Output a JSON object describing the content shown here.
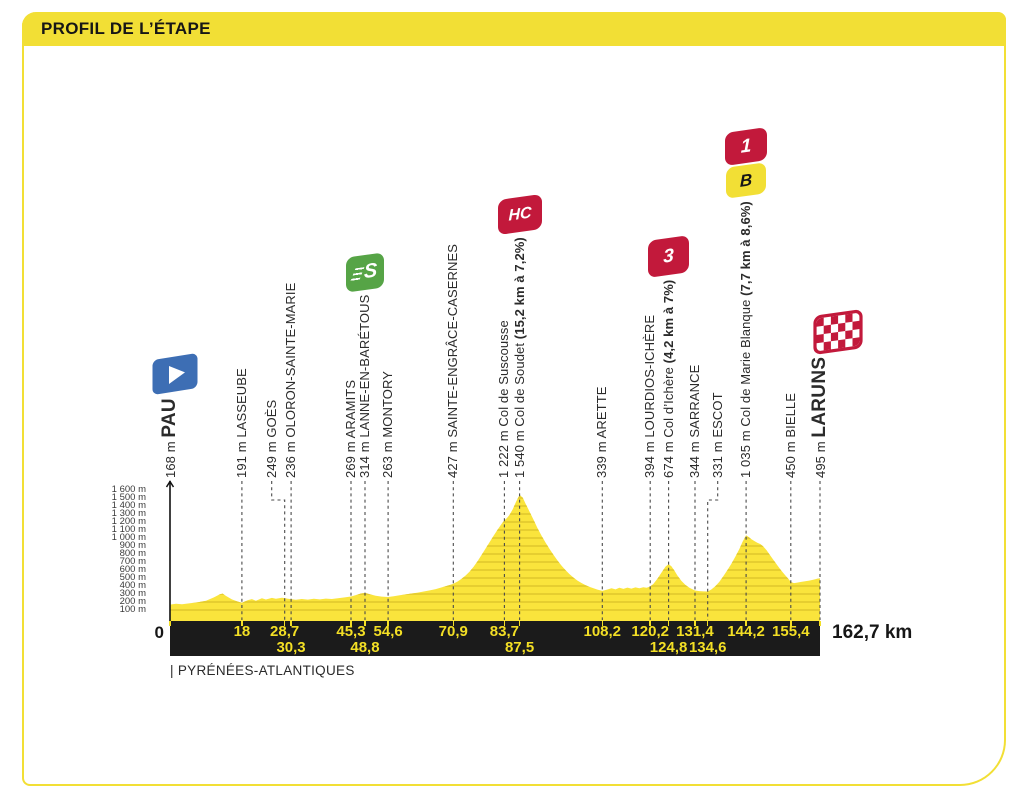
{
  "header": {
    "title": "PROFIL DE L’ÉTAPE"
  },
  "footer": {
    "department": "| PYRÉNÉES-ATLANTIQUES"
  },
  "axis": {
    "start_label": "0",
    "total_label": "162,7 km",
    "y_ticks": [
      {
        "m": 1600,
        "label": "1 600 m"
      },
      {
        "m": 1500,
        "label": "1 500 m"
      },
      {
        "m": 1400,
        "label": "1 400 m"
      },
      {
        "m": 1300,
        "label": "1 300 m"
      },
      {
        "m": 1200,
        "label": "1 200 m"
      },
      {
        "m": 1100,
        "label": "1 100 m"
      },
      {
        "m": 1000,
        "label": "1 000 m"
      },
      {
        "m": 900,
        "label": "900 m"
      },
      {
        "m": 800,
        "label": "800 m"
      },
      {
        "m": 700,
        "label": "700 m"
      },
      {
        "m": 600,
        "label": "600 m"
      },
      {
        "m": 500,
        "label": "500 m"
      },
      {
        "m": 400,
        "label": "400 m"
      },
      {
        "m": 300,
        "label": "300 m"
      },
      {
        "m": 200,
        "label": "200 m"
      },
      {
        "m": 100,
        "label": "100 m"
      }
    ]
  },
  "colors": {
    "brand_yellow": "#F2DF35",
    "profile_yellow": "#FAE43C",
    "stripe": "#DFC62C",
    "category_red": "#C2193B",
    "sprint_green": "#56A446",
    "start_blue": "#3D6EB4",
    "bar_black": "#1B1B1B",
    "km_text_yellow": "#F3DF25",
    "leader_gray": "#4A4A4A"
  },
  "chart_data": {
    "type": "area",
    "title": "PROFIL DE L’ÉTAPE",
    "x_unit": "km",
    "y_unit": "m",
    "xlim": [
      0,
      162.7
    ],
    "ylim": [
      0,
      1600
    ],
    "grid": "horizontal stripes inside area only",
    "legend_position": "none",
    "route": {
      "start": "PAU",
      "finish": "LARUNS",
      "total_km": 162.7,
      "department": "PYRÉNÉES-ATLANTIQUES"
    },
    "badge_defs": {
      "hc": {
        "label": "HC",
        "meaning": "hors catégorie climb"
      },
      "cat1": {
        "label": "1",
        "meaning": "category 1 climb"
      },
      "cat3": {
        "label": "3",
        "meaning": "category 3 climb"
      },
      "bonus": {
        "label": "B",
        "meaning": "bonus point"
      },
      "sprint": {
        "label": "S",
        "meaning": "intermediate sprint"
      },
      "start": {
        "label": "",
        "meaning": "start flag"
      },
      "finish": {
        "label": "",
        "meaning": "finish flag"
      }
    },
    "waypoints": [
      {
        "km": 0,
        "elevation_m": 168,
        "elev_label": "168 m",
        "name": "PAU",
        "style": "start",
        "dist_row": 0,
        "badges": [
          "start"
        ],
        "badge_dx": 5
      },
      {
        "km": 18,
        "elevation_m": 191,
        "elev_label": "191 m",
        "name": "LASSEUBE",
        "style": "city",
        "dist_label": "18",
        "dist_row": 1
      },
      {
        "km": 28.7,
        "elevation_m": 249,
        "elev_label": "249 m",
        "name": "GOÈS",
        "style": "city",
        "dist_label": "28,7",
        "dist_row": 1,
        "label_dx": -13
      },
      {
        "km": 30.3,
        "elevation_m": 236,
        "elev_label": "236 m",
        "name": "OLORON-SAINTE-MARIE",
        "style": "city",
        "dist_label": "30,3",
        "dist_row": 2
      },
      {
        "km": 45.3,
        "elevation_m": 269,
        "elev_label": "269 m",
        "name": "ARAMITS",
        "style": "city",
        "dist_label": "45,3",
        "dist_row": 1
      },
      {
        "km": 48.8,
        "elevation_m": 314,
        "elev_label": "314 m",
        "name": "LANNE-EN-BARÉTOUS",
        "style": "city",
        "dist_label": "48,8",
        "dist_row": 2,
        "badges": [
          "sprint"
        ]
      },
      {
        "km": 54.6,
        "elevation_m": 263,
        "elev_label": "263 m",
        "name": "MONTORY",
        "style": "city",
        "dist_label": "54,6",
        "dist_row": 1
      },
      {
        "km": 70.9,
        "elevation_m": 427,
        "elev_label": "427 m",
        "name": "SAINTE-ENGRÂCE-CASERNES",
        "style": "city",
        "dist_label": "70,9",
        "dist_row": 1
      },
      {
        "km": 83.7,
        "elevation_m": 1222,
        "elev_label": "1 222 m",
        "name": "Col de Suscousse",
        "style": "climb",
        "dist_label": "83,7",
        "dist_row": 1
      },
      {
        "km": 87.5,
        "elevation_m": 1540,
        "elev_label": "1 540 m",
        "name": "Col de Soudet",
        "style": "climb",
        "detail": "(15,2 km à 7,2%)",
        "dist_label": "87,5",
        "dist_row": 2,
        "badges": [
          "hc"
        ]
      },
      {
        "km": 108.2,
        "elevation_m": 339,
        "elev_label": "339 m",
        "name": "ARETTE",
        "style": "city",
        "dist_label": "108,2",
        "dist_row": 1
      },
      {
        "km": 120.2,
        "elevation_m": 394,
        "elev_label": "394 m",
        "name": "LOURDIOS-ICHÈRE",
        "style": "city",
        "dist_label": "120,2",
        "dist_row": 1
      },
      {
        "km": 124.8,
        "elevation_m": 674,
        "elev_label": "674 m",
        "name": "Col d’Ichère",
        "style": "climb",
        "detail": "(4,2 km à 7%)",
        "dist_label": "124,8",
        "dist_row": 2,
        "badges": [
          "cat3"
        ]
      },
      {
        "km": 131.4,
        "elevation_m": 344,
        "elev_label": "344 m",
        "name": "SARRANCE",
        "style": "city",
        "dist_label": "131,4",
        "dist_row": 1
      },
      {
        "km": 134.6,
        "elevation_m": 331,
        "elev_label": "331 m",
        "name": "ESCOT",
        "style": "city",
        "dist_label": "134,6",
        "dist_row": 2,
        "label_dx": 10
      },
      {
        "km": 144.2,
        "elevation_m": 1035,
        "elev_label": "1 035 m",
        "name": "Col de Marie Blanque",
        "style": "climb",
        "detail": "(7,7 km à 8,6%)",
        "dist_label": "144,2",
        "dist_row": 1,
        "badges": [
          "cat1",
          "bonus"
        ]
      },
      {
        "km": 155.4,
        "elevation_m": 450,
        "elev_label": "450 m",
        "name": "BIELLE",
        "style": "city",
        "dist_label": "155,4",
        "dist_row": 1
      },
      {
        "km": 162.7,
        "elevation_m": 495,
        "elev_label": "495 m",
        "name": "LARUNS",
        "style": "finish",
        "dist_row": 0,
        "badges": [
          "finish"
        ],
        "badge_dx": 18
      }
    ],
    "profile": [
      [
        0,
        168
      ],
      [
        1.5,
        178
      ],
      [
        3,
        172
      ],
      [
        5,
        185
      ],
      [
        7,
        196
      ],
      [
        9,
        215
      ],
      [
        11,
        258
      ],
      [
        12.5,
        298
      ],
      [
        13.2,
        305
      ],
      [
        14,
        276
      ],
      [
        15.5,
        232
      ],
      [
        17,
        205
      ],
      [
        18,
        191
      ],
      [
        19.5,
        224
      ],
      [
        20.5,
        236
      ],
      [
        21.5,
        216
      ],
      [
        23,
        246
      ],
      [
        24,
        231
      ],
      [
        25.5,
        251
      ],
      [
        26.5,
        241
      ],
      [
        28,
        252
      ],
      [
        28.7,
        249
      ],
      [
        29.5,
        241
      ],
      [
        30.3,
        236
      ],
      [
        31.5,
        228
      ],
      [
        33,
        238
      ],
      [
        34.5,
        230
      ],
      [
        36,
        240
      ],
      [
        37.5,
        233
      ],
      [
        39,
        242
      ],
      [
        40.5,
        238
      ],
      [
        42,
        248
      ],
      [
        43.5,
        256
      ],
      [
        45.3,
        269
      ],
      [
        46.5,
        286
      ],
      [
        47.8,
        306
      ],
      [
        48.8,
        314
      ],
      [
        50,
        296
      ],
      [
        51.5,
        278
      ],
      [
        53,
        268
      ],
      [
        54.6,
        263
      ],
      [
        56,
        272
      ],
      [
        57.5,
        284
      ],
      [
        59,
        295
      ],
      [
        60.5,
        306
      ],
      [
        62,
        318
      ],
      [
        63.5,
        331
      ],
      [
        65,
        345
      ],
      [
        66.5,
        361
      ],
      [
        68,
        382
      ],
      [
        69.5,
        405
      ],
      [
        70.9,
        427
      ],
      [
        72,
        456
      ],
      [
        73,
        490
      ],
      [
        74,
        531
      ],
      [
        75,
        580
      ],
      [
        76,
        641
      ],
      [
        77,
        711
      ],
      [
        78,
        789
      ],
      [
        79,
        869
      ],
      [
        80,
        949
      ],
      [
        81,
        1029
      ],
      [
        82,
        1105
      ],
      [
        83,
        1176
      ],
      [
        83.7,
        1222
      ],
      [
        84.3,
        1246
      ],
      [
        85,
        1291
      ],
      [
        85.8,
        1361
      ],
      [
        86.6,
        1451
      ],
      [
        87.5,
        1540
      ],
      [
        88.3,
        1504
      ],
      [
        89,
        1429
      ],
      [
        90,
        1329
      ],
      [
        91,
        1226
      ],
      [
        92,
        1124
      ],
      [
        93,
        1030
      ],
      [
        94,
        944
      ],
      [
        95,
        864
      ],
      [
        96,
        789
      ],
      [
        97,
        719
      ],
      [
        98,
        655
      ],
      [
        99,
        599
      ],
      [
        100,
        549
      ],
      [
        101,
        505
      ],
      [
        102,
        468
      ],
      [
        103,
        437
      ],
      [
        104,
        411
      ],
      [
        105,
        389
      ],
      [
        106,
        371
      ],
      [
        107,
        355
      ],
      [
        108.2,
        339
      ],
      [
        109.5,
        356
      ],
      [
        110.5,
        372
      ],
      [
        111.5,
        358
      ],
      [
        112.5,
        377
      ],
      [
        113.5,
        364
      ],
      [
        114.5,
        380
      ],
      [
        115.5,
        368
      ],
      [
        116.5,
        382
      ],
      [
        117.5,
        371
      ],
      [
        118.5,
        384
      ],
      [
        119.3,
        377
      ],
      [
        120.2,
        394
      ],
      [
        121,
        426
      ],
      [
        122,
        491
      ],
      [
        123,
        566
      ],
      [
        124,
        641
      ],
      [
        124.8,
        674
      ],
      [
        125.5,
        646
      ],
      [
        126.3,
        589
      ],
      [
        127,
        531
      ],
      [
        128,
        464
      ],
      [
        129,
        414
      ],
      [
        130,
        379
      ],
      [
        131.4,
        344
      ],
      [
        132.5,
        336
      ],
      [
        133.5,
        332
      ],
      [
        134.6,
        331
      ],
      [
        135.5,
        356
      ],
      [
        136.5,
        396
      ],
      [
        137.5,
        451
      ],
      [
        138.5,
        521
      ],
      [
        139.5,
        596
      ],
      [
        140.5,
        676
      ],
      [
        141.5,
        766
      ],
      [
        142.5,
        861
      ],
      [
        143.3,
        951
      ],
      [
        144.2,
        1035
      ],
      [
        144.8,
        1014
      ],
      [
        145.5,
        986
      ],
      [
        146.2,
        964
      ],
      [
        147,
        941
      ],
      [
        147.8,
        924
      ],
      [
        148.5,
        894
      ],
      [
        149.3,
        849
      ],
      [
        150,
        799
      ],
      [
        151,
        729
      ],
      [
        152,
        659
      ],
      [
        153,
        594
      ],
      [
        154,
        534
      ],
      [
        154.8,
        489
      ],
      [
        155.4,
        450
      ],
      [
        156.2,
        436
      ],
      [
        157,
        443
      ],
      [
        158,
        451
      ],
      [
        159,
        459
      ],
      [
        160,
        468
      ],
      [
        161,
        478
      ],
      [
        162,
        490
      ],
      [
        162.7,
        495
      ]
    ]
  }
}
